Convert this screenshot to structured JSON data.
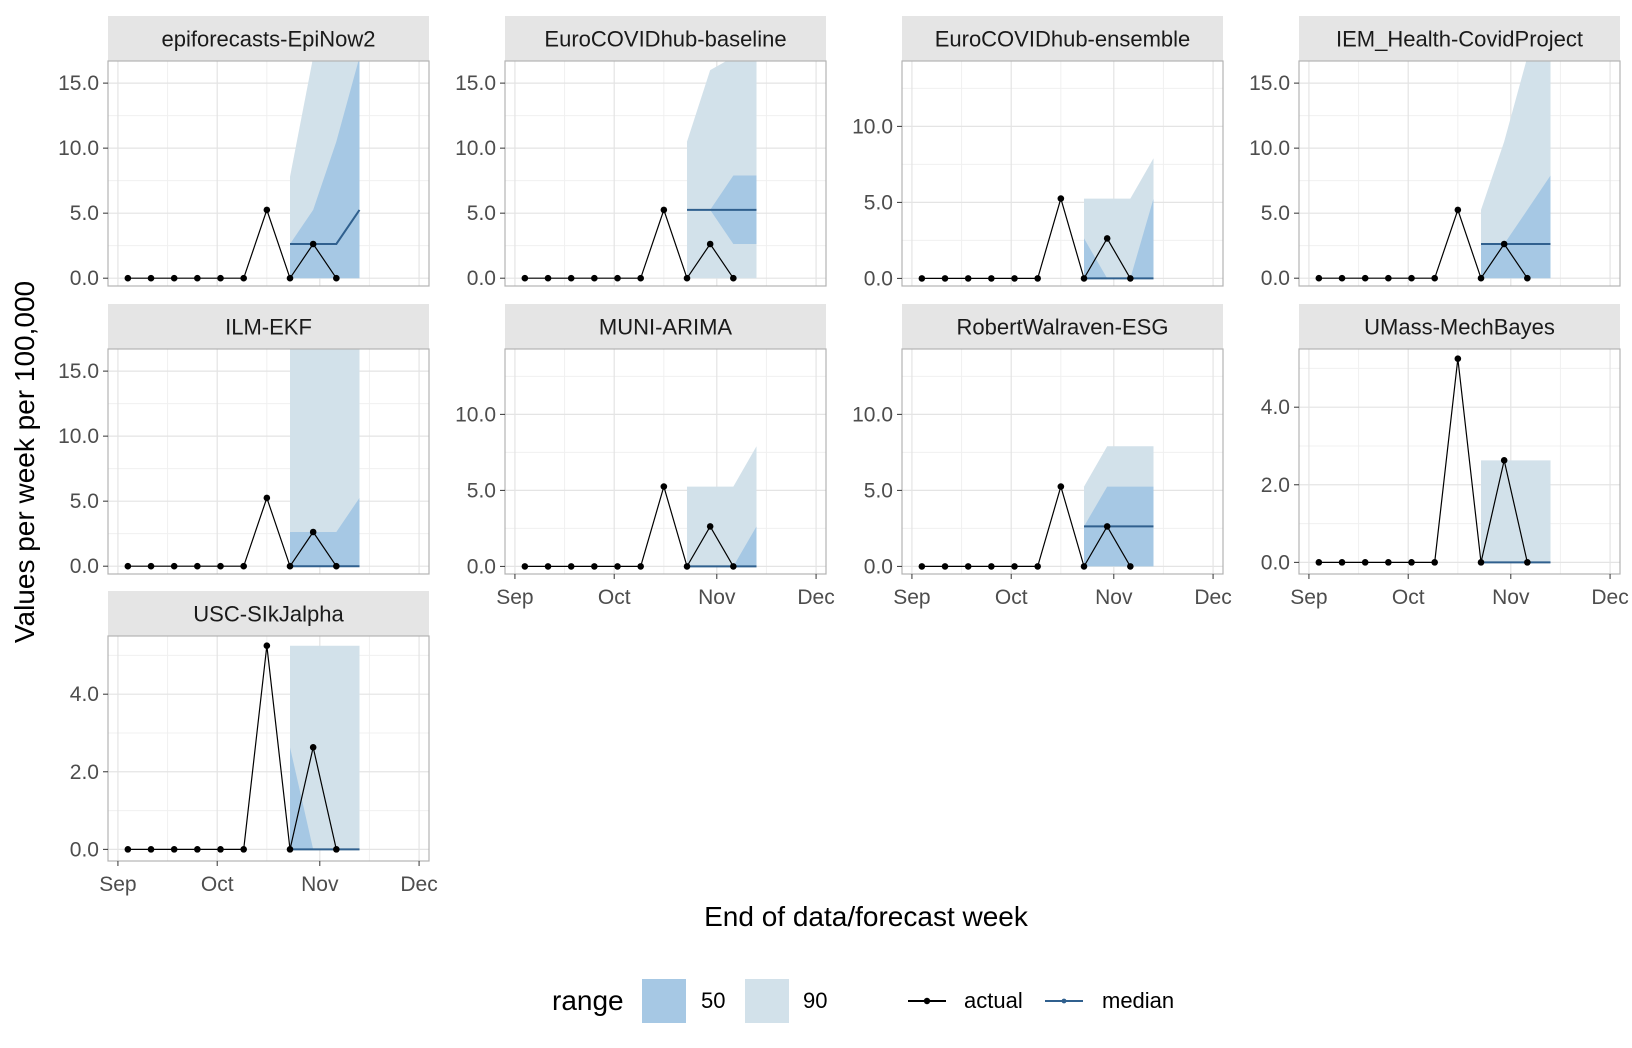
{
  "chart_data": {
    "type": "line",
    "xlabel": "End of data/forecast week",
    "ylabel": "Values per week per 100,000",
    "x_axis": {
      "labels": [
        "Sep",
        "Oct",
        "Nov",
        "Dec"
      ],
      "dates": [
        "2021-09-01",
        "2021-10-01",
        "2021-11-01",
        "2021-12-01"
      ],
      "range": [
        "2021-08-29",
        "2021-12-04"
      ]
    },
    "actual_dates": [
      "2021-09-04",
      "2021-09-11",
      "2021-09-18",
      "2021-09-25",
      "2021-10-02",
      "2021-10-09",
      "2021-10-16",
      "2021-10-23",
      "2021-10-30",
      "2021-11-06"
    ],
    "forecast_dates": [
      "2021-10-23",
      "2021-10-30",
      "2021-11-06",
      "2021-11-13"
    ],
    "legend": {
      "range_title": "range",
      "range_items": [
        {
          "label": "50",
          "color": "#a6c8e4"
        },
        {
          "label": "90",
          "color": "#d2e1ea"
        }
      ],
      "line_items": [
        {
          "label": "actual",
          "color": "#000000"
        },
        {
          "label": "median",
          "color": "#30608e"
        }
      ]
    },
    "colors": {
      "actual": "#000000",
      "median": "#30608e",
      "band50": "#a6c8e4",
      "band90": "#d2e1ea",
      "strip": "#e5e5e5",
      "panel_border": "#b3b3b3"
    },
    "panels": [
      {
        "title": "epiforecasts-EpiNow2",
        "ylim": [
          -0.6,
          16.7
        ],
        "yticks": [
          0,
          5,
          10,
          15
        ],
        "yfmt": "0.0",
        "actual": [
          0,
          0,
          0,
          0,
          0,
          0,
          5.25,
          0,
          2.63,
          0
        ],
        "median": [
          2.63,
          2.63,
          2.63,
          5.25
        ],
        "q50": [
          [
            0,
            2.63
          ],
          [
            0,
            5.25
          ],
          [
            0,
            10.5
          ],
          [
            0,
            17
          ]
        ],
        "q90": [
          [
            0,
            7.8
          ],
          [
            0,
            17
          ],
          [
            0,
            17
          ],
          [
            0,
            17
          ]
        ]
      },
      {
        "title": "EuroCOVIDhub-baseline",
        "ylim": [
          -0.6,
          16.7
        ],
        "yticks": [
          0,
          5,
          10,
          15
        ],
        "yfmt": "0.0",
        "actual": [
          0,
          0,
          0,
          0,
          0,
          0,
          5.25,
          0,
          2.63,
          0
        ],
        "median": [
          5.25,
          5.25,
          5.25,
          5.25
        ],
        "q50": [
          [
            5.25,
            5.25
          ],
          [
            5.25,
            5.25
          ],
          [
            2.63,
            7.9
          ],
          [
            2.63,
            7.9
          ]
        ],
        "q90": [
          [
            0,
            10.5
          ],
          [
            0,
            16
          ],
          [
            0,
            17
          ],
          [
            0,
            17
          ]
        ]
      },
      {
        "title": "EuroCOVIDhub-ensemble",
        "ylim": [
          -0.5,
          14.3
        ],
        "yticks": [
          0,
          5,
          10
        ],
        "yfmt": "0.0",
        "actual": [
          0,
          0,
          0,
          0,
          0,
          0,
          5.25,
          0,
          2.63,
          0
        ],
        "median": [
          0,
          0,
          0,
          0
        ],
        "q50": [
          [
            0,
            2.63
          ],
          [
            0,
            0
          ],
          [
            0,
            0
          ],
          [
            0,
            5.25
          ]
        ],
        "q90": [
          [
            0,
            5.25
          ],
          [
            0,
            5.25
          ],
          [
            0,
            5.25
          ],
          [
            0,
            7.9
          ]
        ]
      },
      {
        "title": "IEM_Health-CovidProject",
        "ylim": [
          -0.6,
          16.7
        ],
        "yticks": [
          0,
          5,
          10,
          15
        ],
        "yfmt": "0.0",
        "actual": [
          0,
          0,
          0,
          0,
          0,
          0,
          5.25,
          0,
          2.63,
          0
        ],
        "median": [
          2.63,
          2.63,
          2.63,
          2.63
        ],
        "q50": [
          [
            0,
            2.63
          ],
          [
            0,
            2.63
          ],
          [
            0,
            5.25
          ],
          [
            0,
            7.9
          ]
        ],
        "q90": [
          [
            0,
            5.25
          ],
          [
            0,
            10.5
          ],
          [
            0,
            17
          ],
          [
            0,
            17
          ]
        ]
      },
      {
        "title": "ILM-EKF",
        "ylim": [
          -0.6,
          16.7
        ],
        "yticks": [
          0,
          5,
          10,
          15
        ],
        "yfmt": "0.0",
        "actual": [
          0,
          0,
          0,
          0,
          0,
          0,
          5.25,
          0,
          2.63,
          0
        ],
        "median": [
          0,
          0,
          0,
          0
        ],
        "q50": [
          [
            0,
            2.63
          ],
          [
            0,
            2.63
          ],
          [
            0,
            2.63
          ],
          [
            0,
            5.25
          ]
        ],
        "q90": [
          [
            0,
            17
          ],
          [
            0,
            17
          ],
          [
            0,
            17
          ],
          [
            0,
            17
          ]
        ]
      },
      {
        "title": "MUNI-ARIMA",
        "ylim": [
          -0.5,
          14.3
        ],
        "yticks": [
          0,
          5,
          10
        ],
        "yfmt": "0.0",
        "actual": [
          0,
          0,
          0,
          0,
          0,
          0,
          5.25,
          0,
          2.63,
          0
        ],
        "median": [
          0,
          0,
          0,
          0
        ],
        "q50": [
          [
            0,
            0
          ],
          [
            0,
            0
          ],
          [
            0,
            0
          ],
          [
            0,
            2.63
          ]
        ],
        "q90": [
          [
            0,
            5.25
          ],
          [
            0,
            5.25
          ],
          [
            0,
            5.25
          ],
          [
            0,
            7.9
          ]
        ]
      },
      {
        "title": "RobertWalraven-ESG",
        "ylim": [
          -0.5,
          14.3
        ],
        "yticks": [
          0,
          5,
          10
        ],
        "yfmt": "0.0",
        "actual": [
          0,
          0,
          0,
          0,
          0,
          0,
          5.25,
          0,
          2.63,
          0
        ],
        "median": [
          2.63,
          2.63,
          2.63,
          2.63
        ],
        "q50": [
          [
            0,
            2.63
          ],
          [
            0,
            5.25
          ],
          [
            0,
            5.25
          ],
          [
            0,
            5.25
          ]
        ],
        "q90": [
          [
            0,
            5.25
          ],
          [
            0,
            7.9
          ],
          [
            0,
            7.9
          ],
          [
            0,
            7.9
          ]
        ]
      },
      {
        "title": "UMass-MechBayes",
        "ylim": [
          -0.3,
          5.5
        ],
        "yticks": [
          0,
          2,
          4
        ],
        "yfmt": "0.0",
        "actual": [
          0,
          0,
          0,
          0,
          0,
          0,
          5.25,
          0,
          2.63,
          0
        ],
        "median": [
          0,
          0,
          0,
          0
        ],
        "q50": [
          [
            0,
            0
          ],
          [
            0,
            0
          ],
          [
            0,
            0
          ],
          [
            0,
            0
          ]
        ],
        "q90": [
          [
            0,
            2.63
          ],
          [
            0,
            2.63
          ],
          [
            0,
            2.63
          ],
          [
            0,
            2.63
          ]
        ]
      },
      {
        "title": "USC-SIkJalpha",
        "ylim": [
          -0.3,
          5.5
        ],
        "yticks": [
          0,
          2,
          4
        ],
        "yfmt": "0.0",
        "actual": [
          0,
          0,
          0,
          0,
          0,
          0,
          5.25,
          0,
          2.63,
          0
        ],
        "median": [
          0,
          0,
          0,
          0
        ],
        "q50": [
          [
            0,
            2.63
          ],
          [
            0,
            0
          ],
          [
            0,
            0
          ],
          [
            0,
            0
          ]
        ],
        "q90": [
          [
            0,
            5.25
          ],
          [
            0,
            5.25
          ],
          [
            0,
            5.25
          ],
          [
            0,
            5.25
          ]
        ]
      }
    ]
  }
}
